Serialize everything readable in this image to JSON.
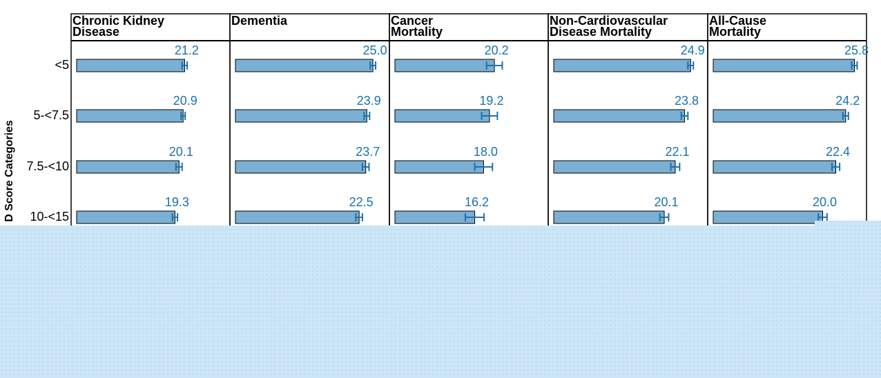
{
  "chart_data": {
    "type": "bar",
    "y_label": "D Score Categories",
    "categories": [
      "<5",
      "5-<7.5",
      "7.5-<10",
      "10-<15"
    ],
    "bar_color": "#7bafd4",
    "label_color": "#1a72ad",
    "panels": [
      {
        "title_lines": [
          "Chronic Kidney",
          "Disease"
        ],
        "xlim": [
          0,
          29
        ],
        "values": [
          21.2,
          20.9,
          20.1,
          19.3
        ],
        "value_labels": [
          "21.2",
          "20.9",
          "20.1",
          "19.3"
        ],
        "errors": [
          0.5,
          0.4,
          0.6,
          0.5
        ]
      },
      {
        "title_lines": [
          "Dementia"
        ],
        "xlim": [
          0,
          27
        ],
        "values": [
          25.0,
          23.9,
          23.7,
          22.5
        ],
        "value_labels": [
          "25.0",
          "23.9",
          "23.7",
          "22.5"
        ],
        "errors": [
          0.5,
          0.5,
          0.6,
          0.6
        ]
      },
      {
        "title_lines": [
          "Cancer",
          "Mortality"
        ],
        "xlim": [
          0,
          30
        ],
        "values": [
          20.2,
          19.2,
          18.0,
          16.2
        ],
        "value_labels": [
          "20.2",
          "19.2",
          "18.0",
          "16.2"
        ],
        "errors": [
          1.6,
          1.6,
          1.8,
          1.9
        ]
      },
      {
        "title_lines": [
          "Non-Cardiovascular",
          "Disease Mortality"
        ],
        "xlim": [
          0,
          27
        ],
        "values": [
          24.9,
          23.8,
          22.1,
          20.1
        ],
        "value_labels": [
          "24.9",
          "23.8",
          "22.1",
          "20.1"
        ],
        "errors": [
          0.5,
          0.6,
          0.8,
          0.8
        ]
      },
      {
        "title_lines": [
          "All-Cause",
          "Mortality"
        ],
        "xlim": [
          0,
          27
        ],
        "values": [
          25.8,
          24.2,
          22.4,
          20.0
        ],
        "value_labels": [
          "25.8",
          "24.2",
          "22.4",
          "20.0"
        ],
        "errors": [
          0.5,
          0.5,
          0.7,
          0.8
        ]
      }
    ]
  }
}
